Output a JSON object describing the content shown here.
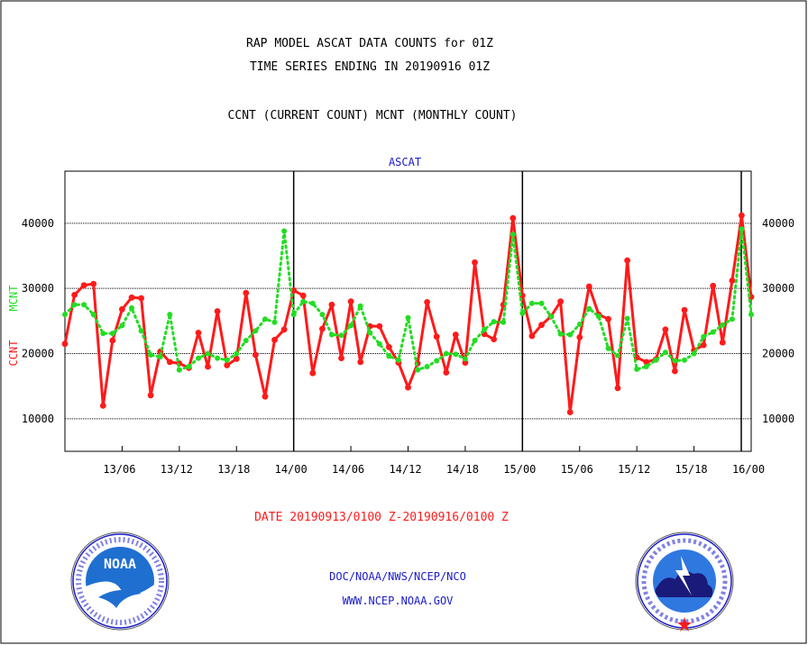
{
  "header": {
    "title_line1": "RAP MODEL ASCAT DATA COUNTS for 01Z",
    "title_line2": "TIME SERIES ENDING IN 20190916 01Z",
    "subtitle": "CCNT (CURRENT COUNT) MCNT (MONTHLY COUNT)"
  },
  "footer": {
    "date_range": "DATE 20190913/0100 Z-20190916/0100 Z",
    "org_line": "DOC/NOAA/NWS/NCEP/NCO",
    "url": "WWW.NCEP.NOAA.GOV"
  },
  "logos": {
    "noaa_text": "NOAA",
    "nws_text": "NATIONAL WEATHER SERVICE"
  },
  "colors": {
    "ccnt": "#ff1a1a",
    "mcnt": "#22dd22",
    "title": "#000000",
    "chart_title": "#1a1acc",
    "date": "#ff1a1a",
    "footer_text": "#1a1acc"
  },
  "chart_data": {
    "type": "line",
    "title": "ASCAT",
    "ylabel_ccnt": "CCNT",
    "ylabel_mcnt": "MCNT",
    "ylim": [
      5000,
      48000
    ],
    "y_ticks": [
      10000,
      20000,
      30000,
      40000
    ],
    "y_tick_labels": [
      "10000",
      "20000",
      "30000",
      "40000"
    ],
    "x_ticks": [
      {
        "x": 6,
        "label": "13/06"
      },
      {
        "x": 12,
        "label": "13/12"
      },
      {
        "x": 18,
        "label": "13/18"
      },
      {
        "x": 24,
        "label": "14/00"
      },
      {
        "x": 30,
        "label": "14/06"
      },
      {
        "x": 36,
        "label": "14/12"
      },
      {
        "x": 42,
        "label": "14/18"
      },
      {
        "x": 48,
        "label": "15/00"
      },
      {
        "x": 54,
        "label": "15/06"
      },
      {
        "x": 60,
        "label": "15/12"
      },
      {
        "x": 66,
        "label": "15/18"
      },
      {
        "x": 72,
        "label": "16/00"
      }
    ],
    "xlim": [
      0,
      72
    ],
    "day_boundaries": [
      24,
      48,
      72
    ],
    "grid": "horizontal dotted",
    "series": [
      {
        "name": "CCNT",
        "style": "solid",
        "values": [
          21500,
          29000,
          30500,
          30700,
          12000,
          22000,
          26800,
          28600,
          28500,
          13600,
          20300,
          18700,
          18500,
          17800,
          23200,
          18000,
          26500,
          18200,
          19200,
          29300,
          19800,
          13400,
          22100,
          23700,
          29700,
          28900,
          17000,
          23800,
          27500,
          19300,
          28000,
          18700,
          24200,
          24200,
          21000,
          18600,
          14800,
          18500,
          27900,
          22600,
          17100,
          22900,
          18600,
          34000,
          23000,
          22200,
          27500,
          40800,
          28900,
          22700,
          24400,
          25700,
          28000,
          11000,
          22500,
          30300,
          26000,
          25300,
          14700,
          34300,
          19400,
          18700,
          19100,
          23700,
          17300,
          26700,
          20500,
          21300,
          30400,
          21700,
          31200,
          41200,
          28700
        ]
      },
      {
        "name": "MCNT",
        "style": "dotted",
        "values": [
          26000,
          27500,
          27500,
          26000,
          23100,
          23100,
          24300,
          27000,
          23500,
          19800,
          19500,
          26000,
          17500,
          18000,
          19300,
          20000,
          19300,
          19000,
          20000,
          22000,
          23500,
          25300,
          24800,
          38800,
          26000,
          28000,
          27700,
          26000,
          22900,
          22800,
          24300,
          27300,
          23200,
          21500,
          19600,
          19000,
          25500,
          17500,
          18000,
          18900,
          20000,
          19900,
          19200,
          22000,
          23700,
          24900,
          24800,
          38300,
          26200,
          27700,
          27700,
          25700,
          23000,
          22900,
          24500,
          26900,
          25700,
          20800,
          19700,
          25400,
          17600,
          18000,
          19000,
          20200,
          18900,
          19000,
          20000,
          22600,
          23300,
          24400,
          25300,
          39100,
          26000
        ]
      }
    ]
  }
}
